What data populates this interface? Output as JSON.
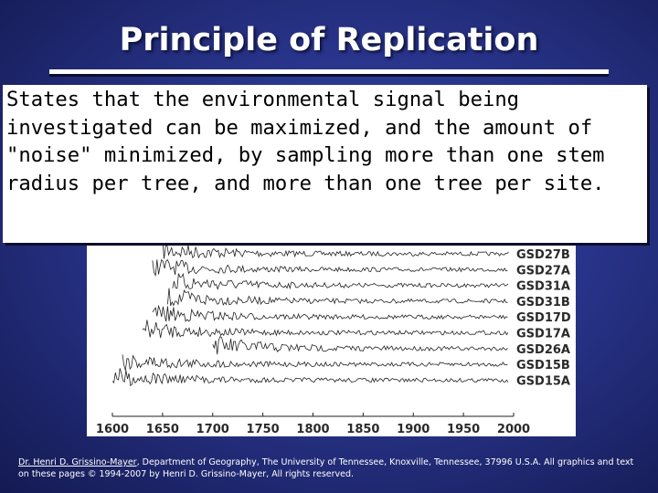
{
  "slide": {
    "title": "Principle of Replication",
    "callout": "States that the environmental signal being investigated can be maximized, and the amount of \"noise\" minimized, by sampling more than one stem radius per tree, and more than one tree per site."
  },
  "figure": {
    "series_labels": [
      "GSD27B",
      "GSD27A",
      "GSD31A",
      "GSD31B",
      "GSD17D",
      "GSD17A",
      "GSD26A",
      "GSD15B",
      "GSD15A"
    ],
    "x_ticks": [
      "1600",
      "1650",
      "1700",
      "1750",
      "1800",
      "1850",
      "1900",
      "1950",
      "2000"
    ],
    "series_start_years": [
      1650,
      1640,
      1660,
      1655,
      1640,
      1630,
      1700,
      1610,
      1600
    ]
  },
  "footer": {
    "author_link": "Dr. Henri D. Grissino-Mayer",
    "text": ", Department of Geography, The University of Tennessee, Knoxville, Tennessee, 37996 U.S.A. All graphics and text on these pages © 1994-2007 by Henri D. Grissino-Mayer, All rights reserved."
  }
}
